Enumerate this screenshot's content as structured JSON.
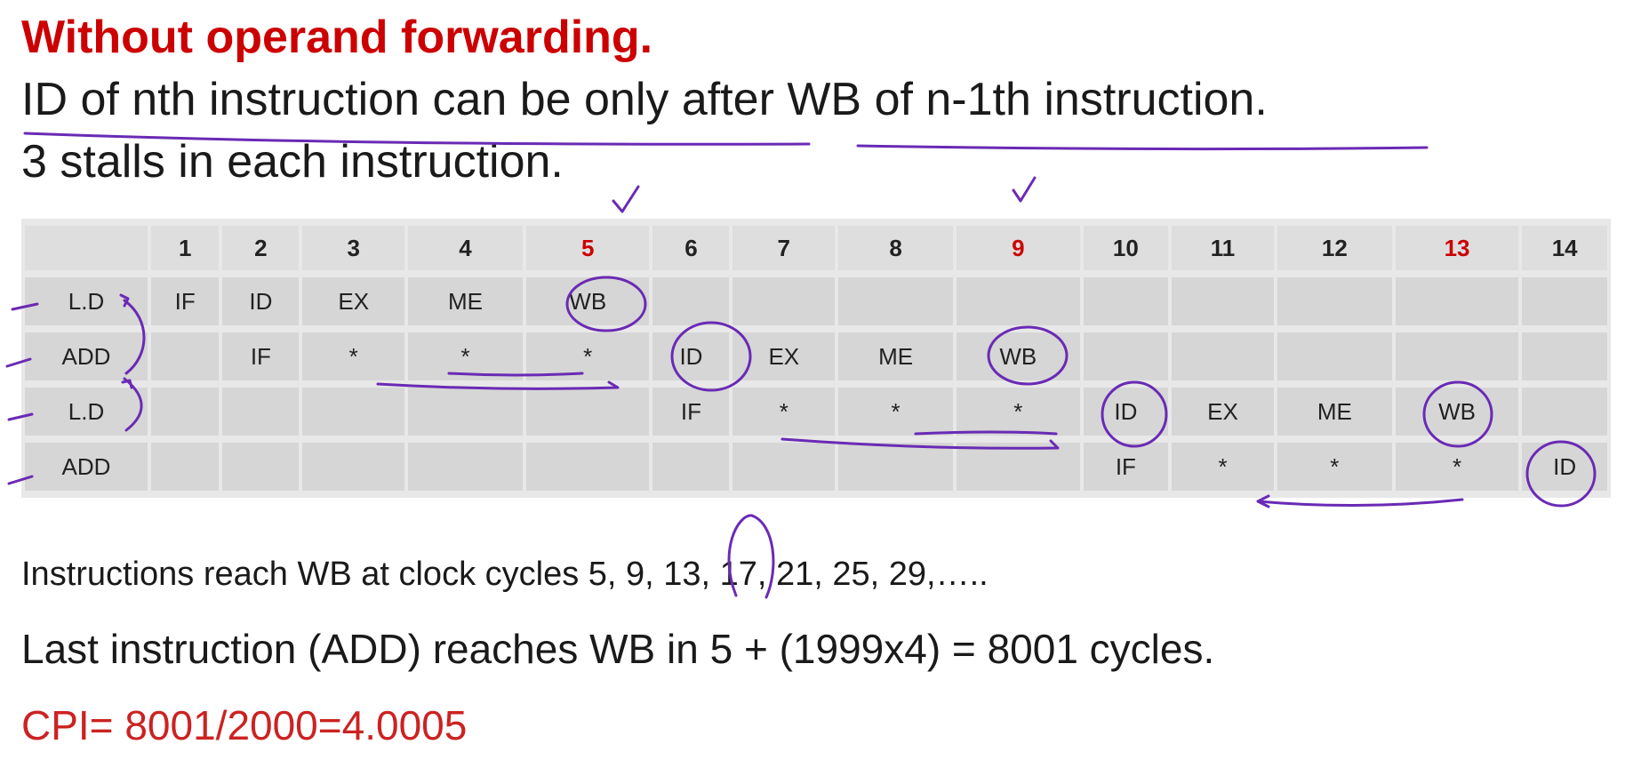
{
  "heading": "Without operand forwarding.",
  "line1": "ID of nth instruction can be only after WB of n-1th instruction.",
  "line2": "3 stalls in each instruction.",
  "table": {
    "header": [
      "",
      "1",
      "2",
      "3",
      "4",
      "5",
      "6",
      "7",
      "8",
      "9",
      "10",
      "11",
      "12",
      "13",
      "14"
    ],
    "highlight_color": "#cc0000",
    "rows": [
      [
        "L.D",
        "IF",
        "ID",
        "EX",
        "ME",
        "WB",
        "",
        "",
        "",
        "",
        "",
        "",
        "",
        "",
        ""
      ],
      [
        "ADD",
        "",
        "IF",
        "*",
        "*",
        "*",
        "ID",
        "EX",
        "ME",
        "WB",
        "",
        "",
        "",
        "",
        ""
      ],
      [
        "L.D",
        "",
        "",
        "",
        "",
        "",
        "IF",
        "*",
        "*",
        "*",
        "ID",
        "EX",
        "ME",
        "WB",
        ""
      ],
      [
        "ADD",
        "",
        "",
        "",
        "",
        "",
        "",
        "",
        "",
        "",
        "IF",
        "*",
        "*",
        "*",
        "ID"
      ]
    ]
  },
  "reach_text": "Instructions reach WB at clock cycles 5, 9, 13, 17, 21, 25, 29,…..",
  "last_text": "Last instruction (ADD) reaches WB in  5 + (1999x4) = 8001 cycles.",
  "cpi_text": "CPI= 8001/2000=4.0005",
  "colors": {
    "heading": "#cc0000",
    "cpi": "#cc2222",
    "ink": "#6a2ab5"
  }
}
